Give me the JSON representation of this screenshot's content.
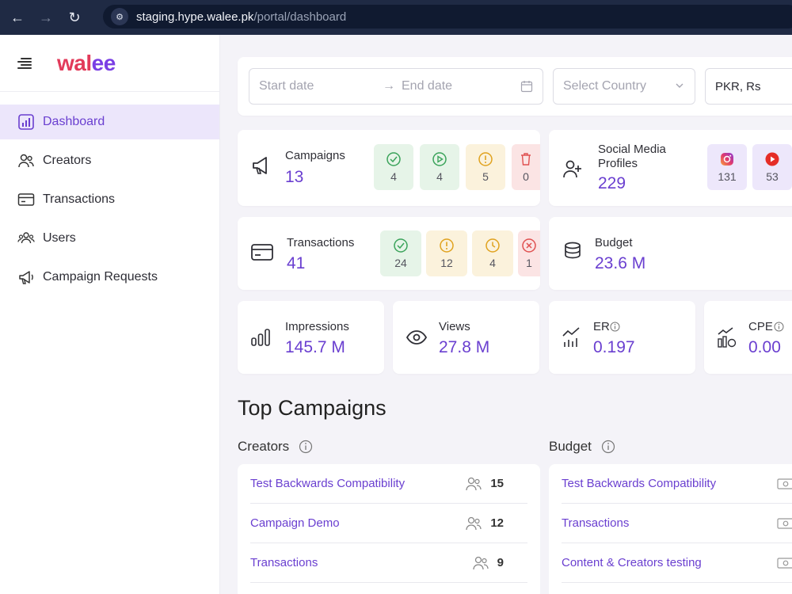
{
  "browser": {
    "url_host": "staging.hype.walee.pk",
    "url_path": "/portal/dashboard"
  },
  "sidebar": {
    "logo": {
      "a": "wal",
      "b": "ee"
    },
    "items": [
      {
        "label": "Dashboard",
        "icon": "bar-chart-icon",
        "active": true
      },
      {
        "label": "Creators",
        "icon": "creators-icon"
      },
      {
        "label": "Transactions",
        "icon": "card-icon"
      },
      {
        "label": "Users",
        "icon": "users-icon"
      },
      {
        "label": "Campaign Requests",
        "icon": "megaphone-icon"
      }
    ]
  },
  "filters": {
    "start_placeholder": "Start date",
    "end_placeholder": "End date",
    "country_placeholder": "Select Country",
    "currency": "PKR, Rs"
  },
  "stats": {
    "campaigns": {
      "label": "Campaigns",
      "value": "13",
      "breakdown": [
        "4",
        "4",
        "5",
        "0"
      ]
    },
    "social": {
      "label": "Social Media Profiles",
      "value": "229",
      "breakdown": [
        "131",
        "53"
      ]
    },
    "transactions": {
      "label": "Transactions",
      "value": "41",
      "breakdown": [
        "24",
        "12",
        "4",
        "1"
      ]
    },
    "budget": {
      "label": "Budget",
      "value": "23.6 M"
    },
    "impressions": {
      "label": "Impressions",
      "value": "145.7 M"
    },
    "views": {
      "label": "Views",
      "value": "27.8 M"
    },
    "er": {
      "label": "ER",
      "value": "0.197"
    },
    "cpe": {
      "label": "CPE",
      "value": "0.00"
    }
  },
  "top_campaigns": {
    "title": "Top Campaigns",
    "creators_title": "Creators",
    "budget_title": "Budget",
    "creators": [
      {
        "name": "Test Backwards Compatibility",
        "count": "15"
      },
      {
        "name": "Campaign Demo",
        "count": "12"
      },
      {
        "name": "Transactions",
        "count": "9"
      }
    ],
    "budget": [
      {
        "name": "Test Backwards Compatibility"
      },
      {
        "name": "Transactions"
      },
      {
        "name": "Content & Creators testing"
      }
    ]
  },
  "colors": {
    "accent": "#6a3fd0",
    "active_bg": "#ece6fb",
    "browser_bar": "#1f2a44",
    "logo_red": "#e23a5a",
    "logo_purple": "#7b3fe4"
  }
}
